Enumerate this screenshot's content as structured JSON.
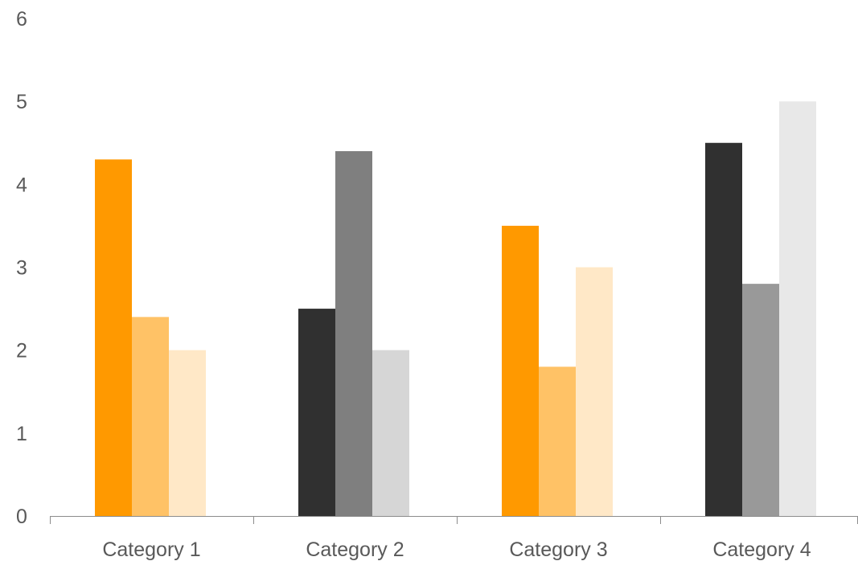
{
  "chart_data": {
    "type": "bar",
    "title": "",
    "xlabel": "",
    "ylabel": "",
    "ylim": [
      0,
      6
    ],
    "yticks": [
      "0",
      "1",
      "2",
      "3",
      "4",
      "5",
      "6"
    ],
    "grid": false,
    "legend": "none",
    "categories": [
      "Category 1",
      "Category 2",
      "Category 3",
      "Category 4"
    ],
    "series": [
      {
        "values": [
          4.3,
          2.5,
          3.5,
          4.5
        ]
      },
      {
        "values": [
          2.4,
          4.4,
          1.8,
          2.8
        ]
      },
      {
        "values": [
          2.0,
          2.0,
          3.0,
          5.0
        ]
      }
    ],
    "bar_colors": [
      [
        "#ff9900",
        "#ffc266",
        "#ffe8c7"
      ],
      [
        "#303030",
        "#7f7f7f",
        "#d6d6d6"
      ],
      [
        "#ff9900",
        "#ffc266",
        "#ffe8c7"
      ],
      [
        "#303030",
        "#999999",
        "#e8e8e8"
      ]
    ],
    "axis_color": "#8c8c8c",
    "text_color": "#595959"
  }
}
